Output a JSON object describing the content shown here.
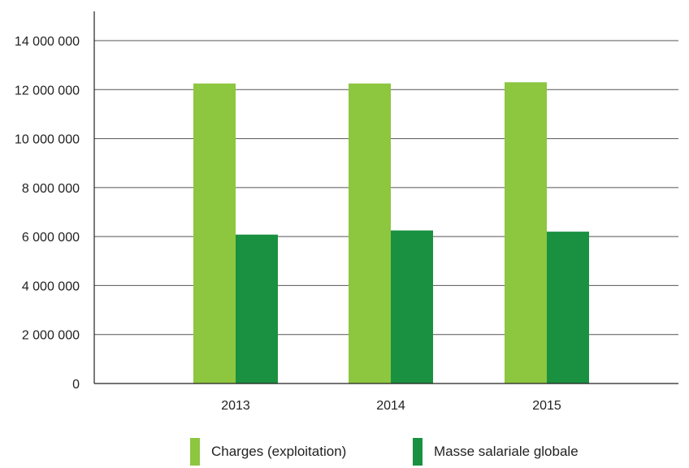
{
  "chart_data": {
    "type": "bar",
    "title": "",
    "xlabel": "",
    "ylabel": "",
    "categories": [
      "2013",
      "2014",
      "2015"
    ],
    "series": [
      {
        "name": "Charges (exploitation)",
        "color": "#8dc63f",
        "values": [
          12250000,
          12250000,
          12300000
        ]
      },
      {
        "name": "Masse salariale globale",
        "color": "#1a9140",
        "values": [
          6080000,
          6250000,
          6200000
        ]
      }
    ],
    "ylim": [
      0,
      14000000
    ],
    "yticks": [
      0,
      2000000,
      4000000,
      6000000,
      8000000,
      10000000,
      12000000,
      14000000
    ],
    "ytick_labels": [
      "0",
      "2 000 000",
      "4 000 000",
      "6 000 000",
      "8 000 000",
      "10 000 000",
      "12 000 000",
      "14 000 000"
    ],
    "grid": true,
    "legend_position": "bottom-center",
    "gridline_color": "#555555",
    "axis_color": "#222222"
  }
}
